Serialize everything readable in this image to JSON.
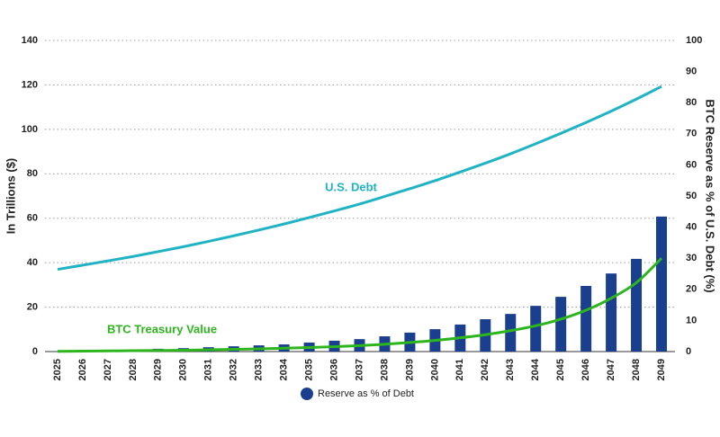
{
  "chart_data": {
    "type": "bar-line",
    "categories": [
      "2025",
      "2026",
      "2027",
      "2028",
      "2029",
      "2030",
      "2031",
      "2032",
      "2033",
      "2034",
      "2035",
      "2036",
      "2037",
      "2038",
      "2039",
      "2040",
      "2041",
      "2042",
      "2043",
      "2044",
      "2045",
      "2046",
      "2047",
      "2048",
      "2049"
    ],
    "series": [
      {
        "name": "Reserve as % of Debt",
        "type": "bar",
        "axis": "y2",
        "color": "#1b3f8f",
        "values": [
          0.1,
          0.2,
          0.3,
          0.5,
          0.9,
          1.1,
          1.4,
          1.7,
          2.0,
          2.3,
          2.9,
          3.5,
          4.0,
          4.9,
          6.1,
          7.2,
          8.7,
          10.4,
          12.1,
          14.7,
          17.6,
          21.1,
          25.1,
          29.8,
          43.4
        ]
      },
      {
        "name": "U.S. Debt",
        "type": "line",
        "color": "#1fb3c4",
        "values": [
          37,
          38.9,
          40.8,
          42.8,
          45.0,
          47.2,
          49.6,
          52.1,
          54.7,
          57.4,
          60.3,
          63.3,
          66.4,
          69.8,
          73.3,
          76.9,
          80.8,
          84.8,
          89.0,
          93.5,
          98.2,
          103.1,
          108.2,
          113.6,
          119.3
        ]
      },
      {
        "name": "BTC Treasury Value",
        "type": "line",
        "color": "#2db51e",
        "values": [
          0.1,
          0.2,
          0.3,
          0.4,
          0.5,
          0.6,
          0.8,
          1.0,
          1.2,
          1.5,
          1.8,
          2.2,
          2.7,
          3.3,
          4.1,
          5.0,
          6.2,
          7.6,
          9.4,
          11.6,
          14.6,
          18.6,
          24,
          31,
          42
        ]
      }
    ],
    "ylabel": "In Trillions ($)",
    "y2label": "BTC Reserve as % of U.S. Debt (%)",
    "ylim": [
      0,
      140
    ],
    "yticks": [
      0,
      20,
      40,
      60,
      80,
      100,
      120,
      140
    ],
    "y2lim": [
      0,
      100
    ],
    "y2ticks": [
      0,
      10,
      20,
      30,
      40,
      50,
      60,
      70,
      80,
      90,
      100
    ],
    "grid": true,
    "legend": "bottom"
  }
}
